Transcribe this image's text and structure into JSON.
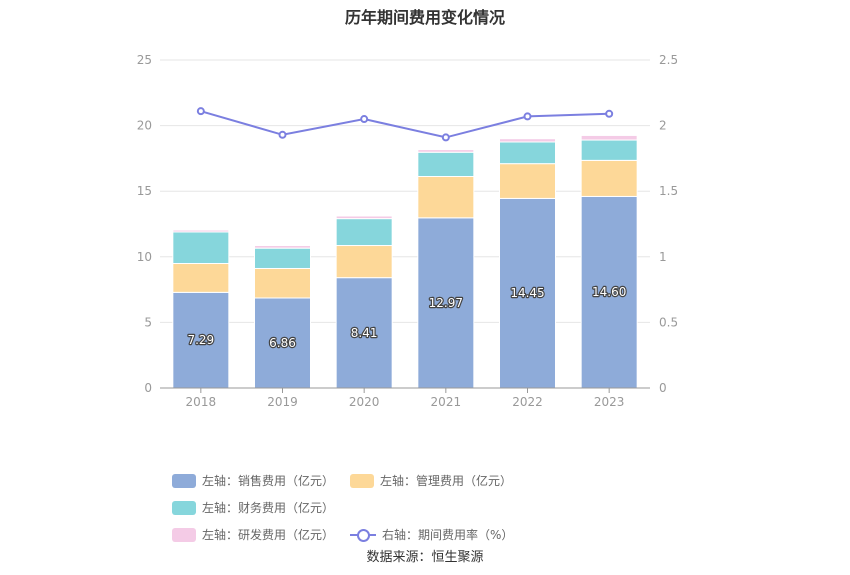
{
  "chart_data": {
    "type": "bar",
    "stacked": true,
    "title": "历年期间费用变化情况",
    "categories": [
      "2018",
      "2019",
      "2020",
      "2021",
      "2022",
      "2023"
    ],
    "y_left": {
      "ticks": [
        "0",
        "5",
        "10",
        "15",
        "20",
        "25"
      ],
      "ylim": [
        0,
        25
      ]
    },
    "y_right": {
      "ticks": [
        "0",
        "0.5",
        "1",
        "1.5",
        "2",
        "2.5"
      ],
      "ylim": [
        0,
        2.5
      ]
    },
    "grid": true,
    "legend_position": "bottom",
    "series": [
      {
        "name": "左轴：销售费用（亿元）",
        "axis": "left",
        "color": "#8eabd9",
        "values": [
          7.29,
          6.86,
          8.41,
          12.97,
          14.45,
          14.6
        ],
        "labels": [
          "7.29",
          "6.86",
          "8.41",
          "12.97",
          "14.45",
          "14.60"
        ]
      },
      {
        "name": "左轴：管理费用（亿元）",
        "axis": "left",
        "color": "#fdd898",
        "values": [
          2.2,
          2.25,
          2.45,
          3.15,
          2.65,
          2.75
        ]
      },
      {
        "name": "左轴：财务费用（亿元）",
        "axis": "left",
        "color": "#86d6dc",
        "values": [
          2.4,
          1.55,
          2.05,
          1.85,
          1.65,
          1.55
        ]
      },
      {
        "name": "左轴：研发费用（亿元）",
        "axis": "left",
        "color": "#f4cbe6",
        "values": [
          0.15,
          0.2,
          0.2,
          0.2,
          0.25,
          0.35
        ]
      },
      {
        "name": "右轴：期间费用率（%）",
        "axis": "right",
        "type": "line",
        "color": "#7b7fe0",
        "values": [
          2.11,
          1.93,
          2.05,
          1.91,
          2.07,
          2.09
        ]
      }
    ]
  },
  "source": "数据来源：恒生聚源"
}
